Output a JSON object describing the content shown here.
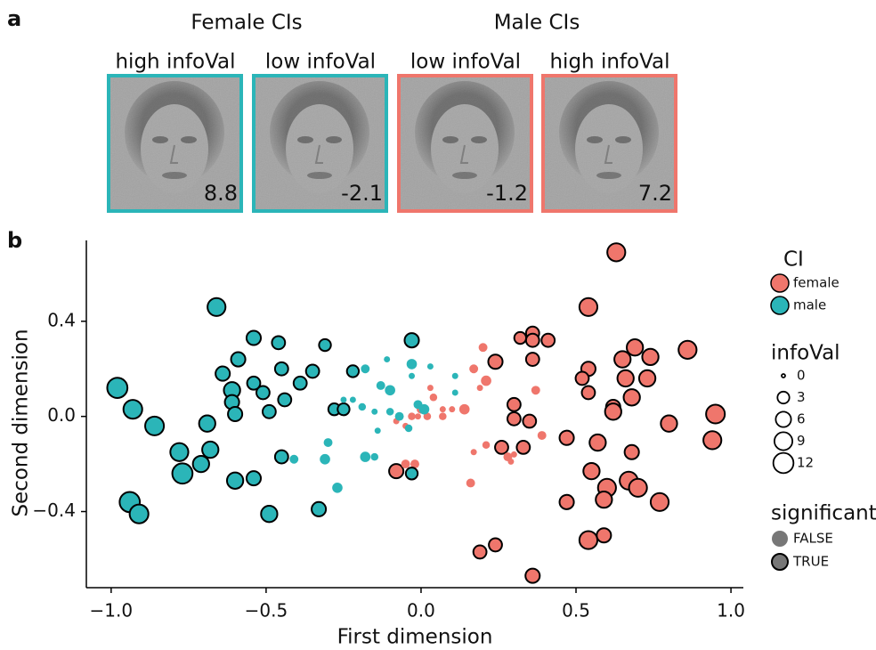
{
  "panel_a": {
    "label": "a",
    "groups": [
      {
        "title": "Female CIs",
        "color": "#2bb5b8",
        "images": [
          {
            "label": "high infoVal",
            "infoVal": 8.8
          },
          {
            "label": "low infoVal",
            "infoVal": -2.1
          }
        ]
      },
      {
        "title": "Male CIs",
        "color": "#ef766c",
        "images": [
          {
            "label": "low infoVal",
            "infoVal": -1.2
          },
          {
            "label": "high infoVal",
            "infoVal": 7.2
          }
        ]
      }
    ]
  },
  "panel_b_label": "b",
  "chart_data": {
    "type": "scatter",
    "x_label": "First dimension",
    "y_label": "Second dimension",
    "xlim": [
      -1.08,
      1.04
    ],
    "ylim": [
      -0.72,
      0.74
    ],
    "xticks": [
      {
        "value": -1,
        "label": "−1.0"
      },
      {
        "value": -0.5,
        "label": "−0.5"
      },
      {
        "value": 0,
        "label": "0.0"
      },
      0.5,
      {
        "value": 1,
        "label": "1.0"
      }
    ],
    "yticks": [
      {
        "value": -0.4,
        "label": "−0.4"
      },
      {
        "value": 0,
        "label": "0.0"
      },
      0.4
    ],
    "legend_title": "CI",
    "size_legend": {
      "title": "infoVal",
      "values": [
        0,
        3,
        6,
        9,
        12
      ]
    },
    "significance_legend": {
      "title": "significant",
      "labels": [
        "FALSE",
        "TRUE"
      ],
      "color": "#777777"
    },
    "series": [
      {
        "name": "female",
        "color": "#ef766c",
        "x": [
          0.63,
          0.54,
          0.36,
          0.36,
          0.41,
          0.32,
          0.36,
          0.24,
          0.54,
          0.65,
          0.69,
          0.86,
          0.74,
          0.52,
          0.66,
          0.54,
          0.73,
          0.68,
          0.62,
          0.62,
          0.3,
          0.3,
          0.35,
          0.8,
          0.95,
          0.94,
          0.47,
          0.57,
          0.68,
          0.26,
          0.33,
          0.55,
          0.67,
          0.6,
          0.7,
          0.59,
          0.47,
          0.77,
          -0.08,
          0.54,
          0.59,
          0.19,
          0.24,
          0.36,
          0.2,
          0.17,
          0.21,
          0.37,
          0.19,
          0.04,
          0.03,
          0.0,
          0.02,
          -0.05,
          -0.03,
          -0.01,
          -0.08,
          0.07,
          0.1,
          0.14,
          0.07,
          0.39,
          0.21,
          0.17,
          0.28,
          0.29,
          0.3,
          -0.02,
          -0.05,
          0.16
        ],
        "y": [
          0.69,
          0.46,
          0.35,
          0.32,
          0.32,
          0.33,
          0.24,
          0.23,
          0.2,
          0.24,
          0.29,
          0.28,
          0.25,
          0.16,
          0.16,
          0.1,
          0.16,
          0.08,
          0.04,
          0.02,
          0.05,
          -0.01,
          -0.02,
          -0.03,
          0.01,
          -0.1,
          -0.09,
          -0.11,
          -0.15,
          -0.13,
          -0.13,
          -0.23,
          -0.27,
          -0.3,
          -0.3,
          -0.35,
          -0.36,
          -0.36,
          -0.23,
          -0.52,
          -0.5,
          -0.57,
          -0.54,
          -0.67,
          0.29,
          0.2,
          0.15,
          0.11,
          0.12,
          0.08,
          0.12,
          0.03,
          0.0,
          -0.04,
          0.0,
          0.0,
          -0.02,
          0.0,
          0.03,
          0.03,
          0.03,
          -0.08,
          -0.12,
          -0.15,
          -0.17,
          -0.19,
          -0.16,
          -0.2,
          -0.2,
          -0.28
        ],
        "infoVal": [
          9,
          9,
          4,
          4,
          4,
          3,
          4,
          5,
          5,
          7,
          7,
          9,
          7,
          4,
          7,
          4,
          7,
          7,
          5,
          7,
          4,
          4,
          4,
          7,
          10,
          9,
          5,
          7,
          5,
          4,
          4,
          7,
          9,
          9,
          9,
          7,
          5,
          9,
          5,
          9,
          5,
          4,
          4,
          5,
          1.2,
          1.2,
          2,
          1.2,
          0.3,
          0.7,
          0.3,
          1.2,
          0.7,
          0.3,
          0.7,
          0.3,
          0.3,
          0.7,
          0.3,
          2,
          0.3,
          1.2,
          0.7,
          0.3,
          1.2,
          0.3,
          0.3,
          1.2,
          1.2,
          1.2
        ],
        "significant": [
          true,
          true,
          true,
          true,
          true,
          true,
          true,
          true,
          true,
          true,
          true,
          true,
          true,
          true,
          true,
          true,
          true,
          true,
          true,
          true,
          true,
          true,
          true,
          true,
          true,
          true,
          true,
          true,
          true,
          true,
          true,
          true,
          true,
          true,
          true,
          true,
          true,
          true,
          true,
          true,
          true,
          true,
          true,
          true,
          false,
          false,
          false,
          false,
          false,
          false,
          false,
          false,
          false,
          false,
          false,
          false,
          false,
          false,
          false,
          false,
          false,
          false,
          false,
          false,
          false,
          false,
          false,
          false,
          false,
          false
        ]
      },
      {
        "name": "male",
        "color": "#2bb5b8",
        "x": [
          -0.98,
          -0.93,
          -0.86,
          -0.94,
          -0.91,
          -0.78,
          -0.77,
          -0.71,
          -0.69,
          -0.68,
          -0.66,
          -0.64,
          -0.61,
          -0.61,
          -0.59,
          -0.6,
          -0.6,
          -0.54,
          -0.54,
          -0.54,
          -0.51,
          -0.49,
          -0.49,
          -0.46,
          -0.45,
          -0.44,
          -0.45,
          -0.39,
          -0.35,
          -0.33,
          -0.31,
          -0.28,
          -0.25,
          -0.22,
          -0.03,
          -0.03,
          -0.41,
          -0.31,
          -0.3,
          -0.27,
          -0.25,
          -0.22,
          -0.19,
          -0.18,
          -0.18,
          -0.15,
          -0.15,
          -0.13,
          -0.1,
          -0.1,
          -0.07,
          -0.04,
          -0.03,
          -0.03,
          -0.01,
          0.01,
          0.03,
          -0.14,
          -0.11,
          0.11,
          0.11
        ],
        "y": [
          0.12,
          0.03,
          -0.04,
          -0.36,
          -0.41,
          -0.15,
          -0.24,
          -0.2,
          -0.03,
          -0.14,
          0.46,
          0.18,
          0.11,
          0.06,
          0.24,
          0.01,
          -0.27,
          0.33,
          0.14,
          -0.26,
          0.1,
          0.02,
          -0.41,
          0.31,
          0.2,
          0.07,
          -0.17,
          0.14,
          0.19,
          -0.39,
          0.3,
          0.03,
          0.03,
          0.19,
          0.32,
          -0.24,
          -0.18,
          -0.18,
          -0.11,
          -0.3,
          0.07,
          0.07,
          0.04,
          0.2,
          -0.17,
          -0.17,
          0.02,
          0.13,
          0.11,
          0.02,
          0.0,
          -0.05,
          0.22,
          0.17,
          0.05,
          0.03,
          0.21,
          -0.06,
          0.24,
          0.1,
          0.17
        ],
        "infoVal": [
          12,
          10,
          10,
          12,
          10,
          9,
          12,
          7,
          7,
          7,
          9,
          5,
          7,
          5,
          5,
          5,
          7,
          5,
          4,
          5,
          4,
          4,
          7,
          4,
          4,
          4,
          4,
          4,
          4,
          5,
          3,
          3,
          3,
          3,
          5,
          3,
          1.2,
          2,
          1.2,
          2,
          0.3,
          0.3,
          0.7,
          1.2,
          2,
          0.7,
          0.3,
          1.2,
          2,
          0.7,
          1.2,
          0.7,
          2,
          0.3,
          1.2,
          2,
          0.3,
          0.3,
          0.3,
          0.3,
          0.3
        ],
        "significant": [
          true,
          true,
          true,
          true,
          true,
          true,
          true,
          true,
          true,
          true,
          true,
          true,
          true,
          true,
          true,
          true,
          true,
          true,
          true,
          true,
          true,
          true,
          true,
          true,
          true,
          true,
          true,
          true,
          true,
          true,
          true,
          true,
          true,
          true,
          true,
          true,
          false,
          false,
          false,
          false,
          false,
          false,
          false,
          false,
          false,
          false,
          false,
          false,
          false,
          false,
          false,
          false,
          false,
          false,
          false,
          false,
          false,
          false,
          false,
          false,
          false
        ]
      }
    ]
  }
}
